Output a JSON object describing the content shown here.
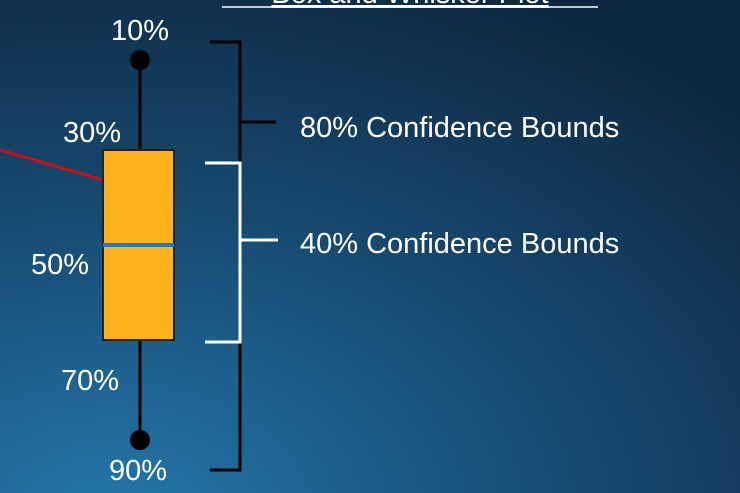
{
  "title": "Box and Whisker Plot",
  "percentiles": [
    "10%",
    "30%",
    "50%",
    "70%",
    "90%"
  ],
  "bounds": [
    "80% Confidence Bounds",
    "40% Confidence Bounds"
  ]
}
